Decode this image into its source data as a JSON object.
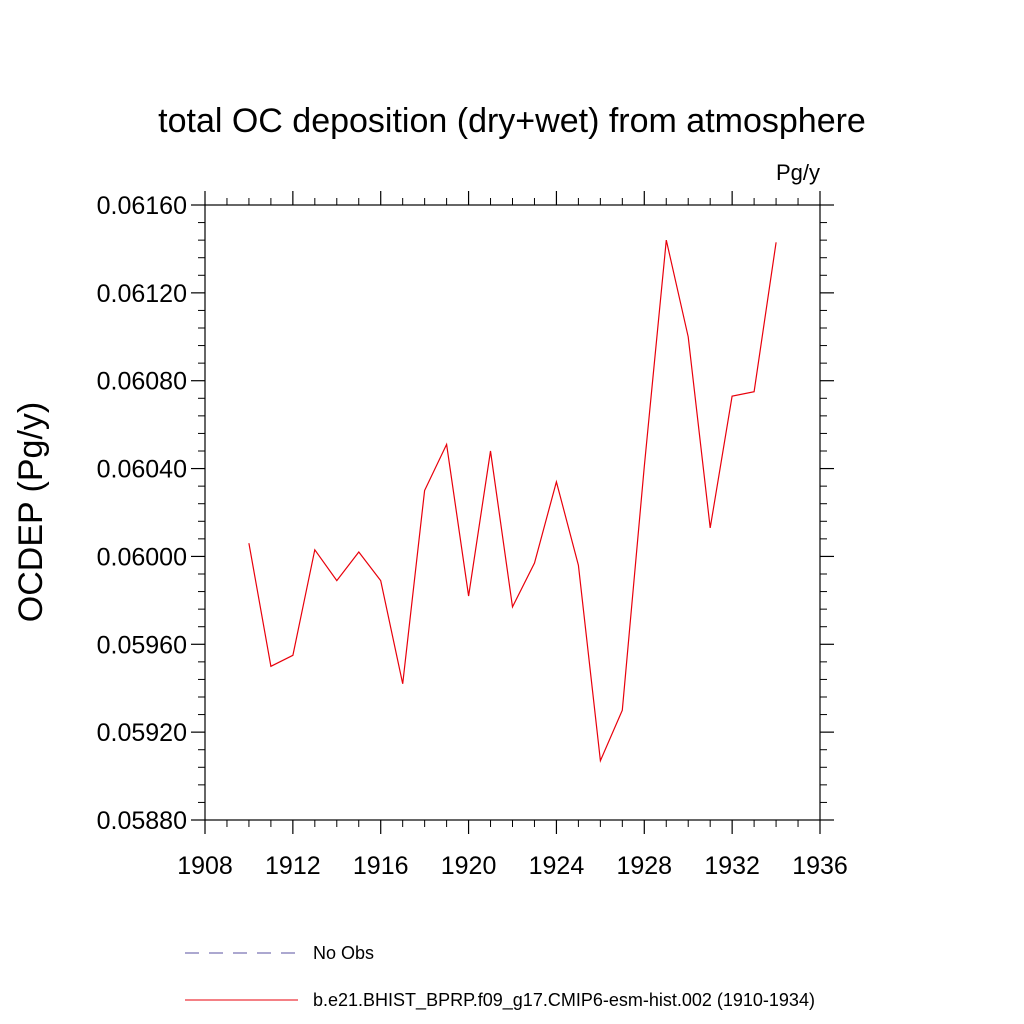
{
  "chart_data": {
    "type": "line",
    "title": "total OC deposition (dry+wet) from atmosphere",
    "units": "Pg/y",
    "ylabel": "OCDEP  (Pg/y)",
    "xlabel": "",
    "xlim": [
      1908,
      1936
    ],
    "ylim": [
      0.0588,
      0.0616
    ],
    "x_ticks": [
      1908,
      1912,
      1916,
      1920,
      1924,
      1928,
      1932,
      1936
    ],
    "x_tick_labels": [
      "1908",
      "1912",
      "1916",
      "1920",
      "1924",
      "1928",
      "1932",
      "1936"
    ],
    "y_ticks": [
      0.0588,
      0.0592,
      0.0596,
      0.06,
      0.0604,
      0.0608,
      0.0612,
      0.0616
    ],
    "y_tick_labels": [
      "0.05880",
      "0.05920",
      "0.05960",
      "0.06000",
      "0.06040",
      "0.06080",
      "0.06120",
      "0.06160"
    ],
    "grid": false,
    "legend_position": "bottom",
    "series": [
      {
        "name": "b.e21.BHIST_BPRP.f09_g17.CMIP6-esm-hist.002 (1910-1934)",
        "color": "#e8000b",
        "style": "solid",
        "x": [
          1910,
          1911,
          1912,
          1913,
          1914,
          1915,
          1916,
          1917,
          1918,
          1919,
          1920,
          1921,
          1922,
          1923,
          1924,
          1925,
          1926,
          1927,
          1928,
          1929,
          1930,
          1931,
          1932,
          1933,
          1934
        ],
        "y": [
          0.06006,
          0.0595,
          0.05955,
          0.06003,
          0.05989,
          0.06002,
          0.05989,
          0.05942,
          0.0603,
          0.06051,
          0.05982,
          0.06048,
          0.05977,
          0.05997,
          0.06034,
          0.05996,
          0.05907,
          0.0593,
          0.06041,
          0.06144,
          0.061,
          0.06013,
          0.06073,
          0.06075,
          0.06143
        ]
      },
      {
        "name": "No Obs",
        "color": "#5a50a0",
        "style": "dashed",
        "x": [],
        "y": []
      }
    ]
  }
}
